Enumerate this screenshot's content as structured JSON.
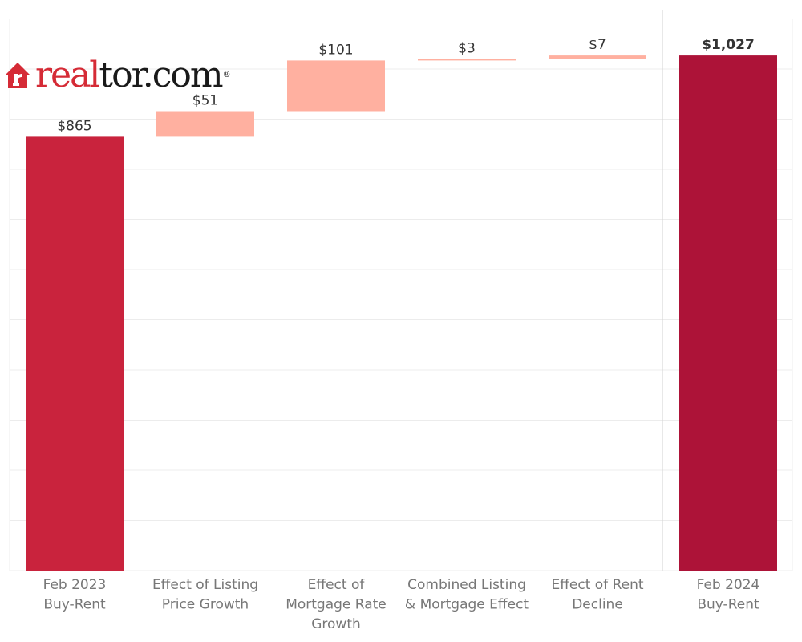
{
  "logo": {
    "part1": "real",
    "part2": "tor.com",
    "tm": "®",
    "icon": "house-icon",
    "brand_color": "#d52b36"
  },
  "colors": {
    "total_start": "#c9233d",
    "total_end": "#ad1338",
    "delta": "#ffb0a0"
  },
  "chart_data": {
    "type": "bar",
    "subtype": "waterfall",
    "title": "",
    "xlabel": "",
    "ylabel": "",
    "ylim": [
      0,
      1100
    ],
    "grid": true,
    "categories": [
      "Feb 2023 Buy-Rent",
      "Effect of Listing Price Growth",
      "Effect of Mortgage Rate Growth",
      "Combined Listing & Mortgage Effect",
      "Effect of Rent Decline",
      "Feb 2024 Buy-Rent"
    ],
    "category_lines": [
      [
        "Feb 2023",
        "Buy-Rent"
      ],
      [
        "Effect of Listing",
        "Price Growth"
      ],
      [
        "Effect of",
        "Mortgage Rate",
        "Growth"
      ],
      [
        "Combined Listing",
        "& Mortgage Effect"
      ],
      [
        "Effect of Rent",
        "Decline"
      ],
      [
        "Feb 2024",
        "Buy-Rent"
      ]
    ],
    "values": [
      865,
      51,
      101,
      3,
      7,
      1027
    ],
    "kinds": [
      "total",
      "delta",
      "delta",
      "delta",
      "delta",
      "total"
    ],
    "labels": [
      "$865",
      "$51",
      "$101",
      "$3",
      "$7",
      "$1,027"
    ]
  }
}
